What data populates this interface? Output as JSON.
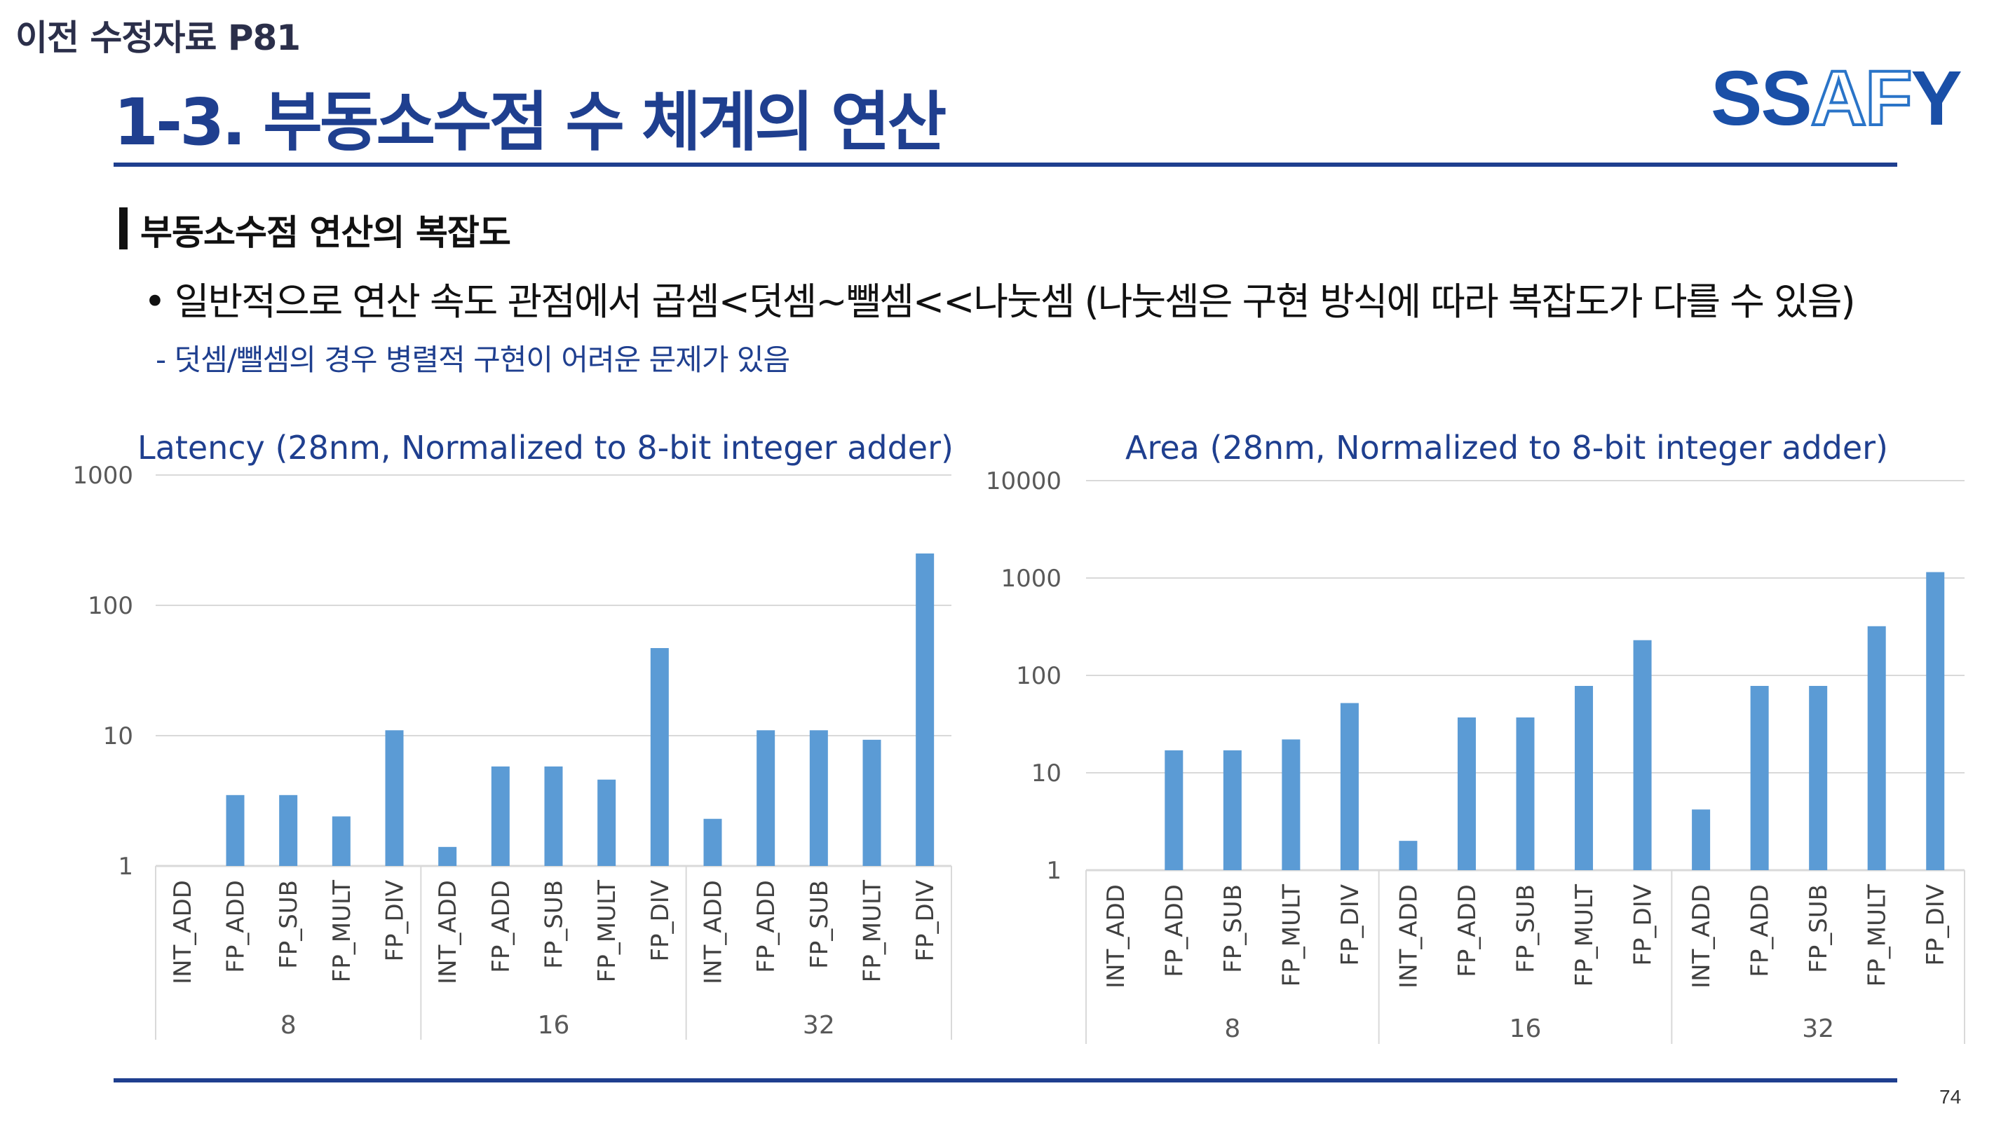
{
  "header": {
    "top_label": "이전 수정자료 P81",
    "title": "1-3. 부동소수점 수 체계의 연산",
    "logo_part1": "SS",
    "logo_part2": "AF",
    "logo_part3": "Y"
  },
  "section": {
    "title": "부동소수점 연산의 복잡도",
    "bullet": "일반적으로 연산 속도 관점에서 곱셈<덧셈~뺄셈<<나눗셈 (나눗셈은 구현 방식에 따라 복잡도가 다를 수 있음)",
    "bullet_marker": "•",
    "sub_bullet": "- 덧셈/뺄셈의 경우 병렬적 구현이 어려운 문제가 있음"
  },
  "page_number": "74",
  "colors": {
    "bar": "#5b9bd5",
    "title_blue": "#1f3f8f",
    "grid": "#d9d9d9"
  },
  "chart_data": [
    {
      "type": "bar",
      "title": "Latency (28nm, Normalized to 8-bit integer adder)",
      "y_scale": "log",
      "ylim": [
        1,
        1000
      ],
      "y_ticks": [
        "1",
        "10",
        "100",
        "1000"
      ],
      "groups": [
        "8",
        "16",
        "32"
      ],
      "categories": [
        "INT_ADD",
        "FP_ADD",
        "FP_SUB",
        "FP_MULT",
        "FP_DIV"
      ],
      "values": [
        [
          1.0,
          3.5,
          3.5,
          2.4,
          11
        ],
        [
          1.4,
          5.8,
          5.8,
          4.6,
          47
        ],
        [
          2.3,
          11,
          11,
          9.3,
          250
        ]
      ],
      "grid": true,
      "legend": "none"
    },
    {
      "type": "bar",
      "title": "Area (28nm, Normalized to 8-bit integer adder)",
      "y_scale": "log",
      "ylim": [
        1,
        10000
      ],
      "y_ticks": [
        "1",
        "10",
        "100",
        "1000",
        "10000"
      ],
      "groups": [
        "8",
        "16",
        "32"
      ],
      "categories": [
        "INT_ADD",
        "FP_ADD",
        "FP_SUB",
        "FP_MULT",
        "FP_DIV"
      ],
      "values": [
        [
          1.0,
          17,
          17,
          22,
          52
        ],
        [
          2.0,
          37,
          37,
          78,
          230
        ],
        [
          4.2,
          78,
          78,
          320,
          1150
        ]
      ],
      "grid": true,
      "legend": "none"
    }
  ]
}
